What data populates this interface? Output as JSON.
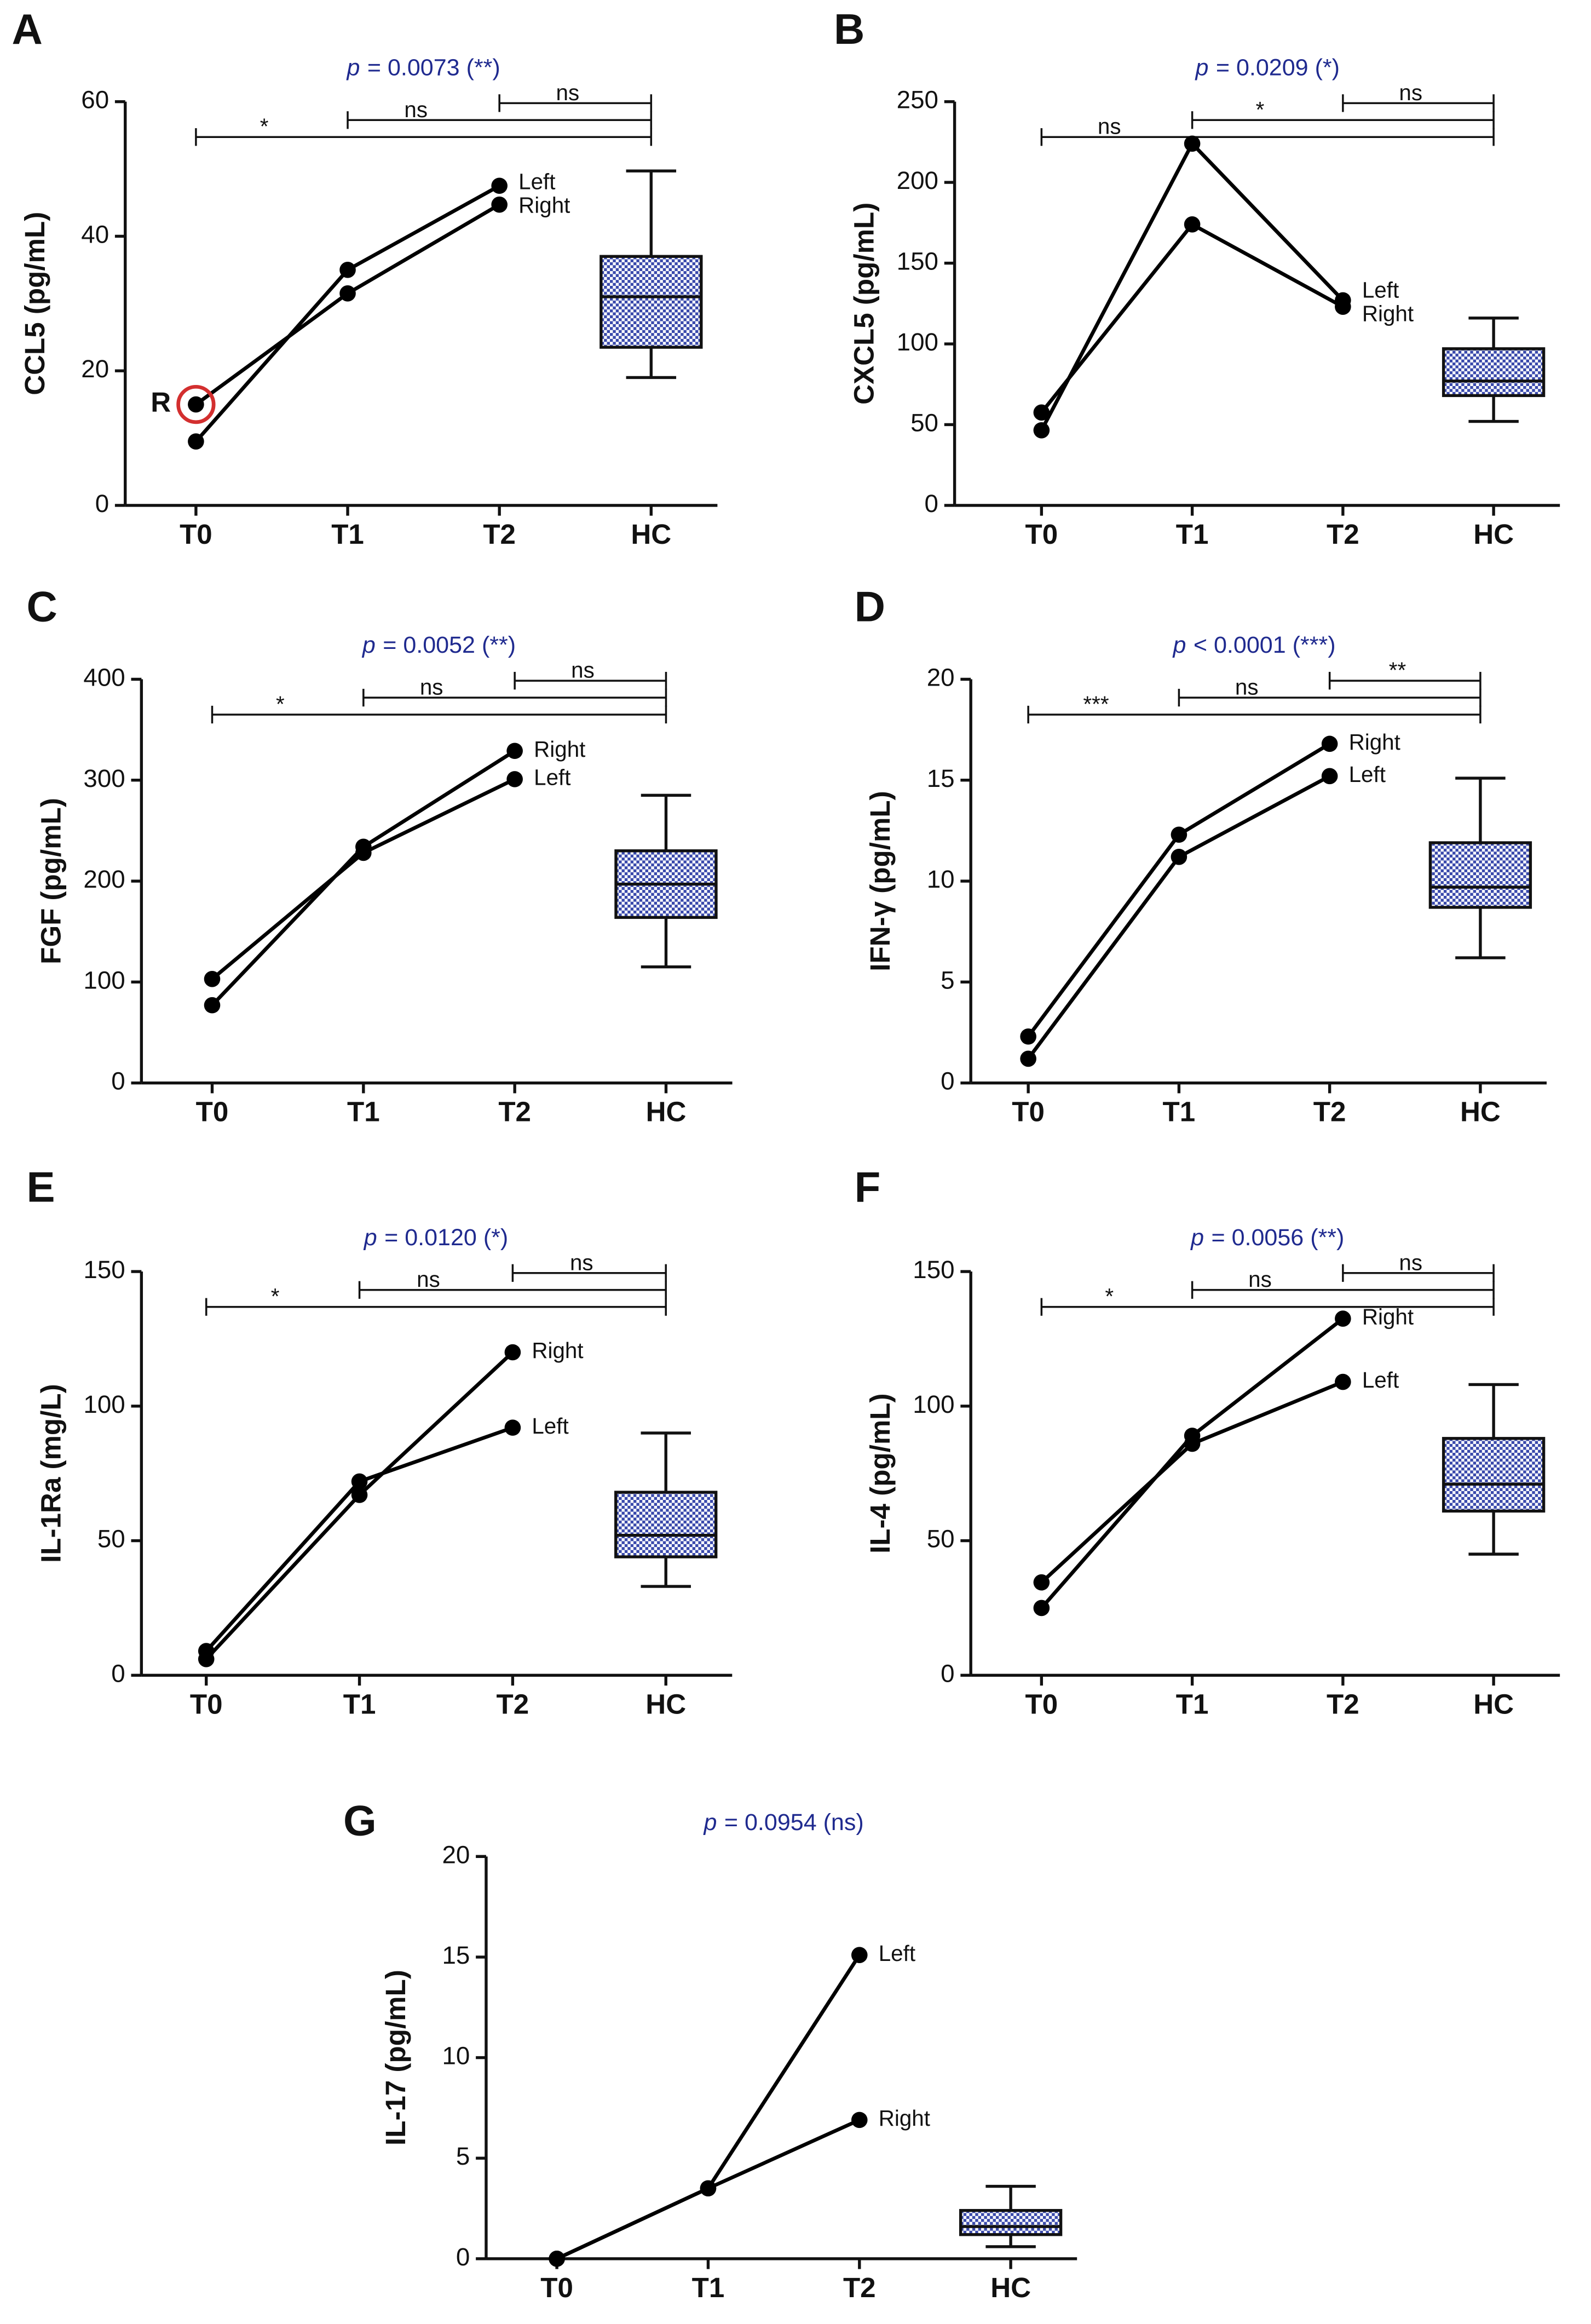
{
  "chart_data": [
    {
      "type": "line",
      "panel_label": "A",
      "p_letter": "p",
      "p_value": "= 0.0073 (**)",
      "ylabel": "CCL5 (pg/mL)",
      "categories": [
        "T0",
        "T1",
        "T2",
        "HC"
      ],
      "series": [
        {
          "name": "Left",
          "color": "#000000",
          "values": [
            9.5,
            35,
            47.5,
            null
          ]
        },
        {
          "name": "Right",
          "color": "#000000",
          "values": [
            15,
            31.5,
            44.7,
            null
          ]
        }
      ],
      "box": {
        "category": "HC",
        "whisker_low": 19,
        "q1": 23.5,
        "median": 31,
        "q3": 37,
        "whisker_high": 49.7,
        "color": "#3949ab"
      },
      "comparisons": [
        {
          "from": "T0",
          "to": "HC",
          "label": "*"
        },
        {
          "from": "T1",
          "to": "HC",
          "label": "ns"
        },
        {
          "from": "T2",
          "to": "HC",
          "label": "ns"
        }
      ],
      "annotation": {
        "text": "R",
        "category": "T0",
        "series": "Right",
        "color": "#d32f2f"
      },
      "ylim": [
        0,
        60
      ],
      "yticks": [
        0,
        20,
        40,
        60
      ]
    },
    {
      "type": "line",
      "panel_label": "B",
      "p_letter": "p",
      "p_value": "= 0.0209 (*)",
      "ylabel": "CXCL5 (pg/mL)",
      "categories": [
        "T0",
        "T1",
        "T2",
        "HC"
      ],
      "series": [
        {
          "name": "Left",
          "color": "#000000",
          "values": [
            46.5,
            224,
            127,
            null
          ]
        },
        {
          "name": "Right",
          "color": "#000000",
          "values": [
            57.5,
            174,
            123,
            null
          ]
        }
      ],
      "box": {
        "category": "HC",
        "whisker_low": 52,
        "q1": 68,
        "median": 77,
        "q3": 97,
        "whisker_high": 116,
        "color": "#3949ab"
      },
      "comparisons": [
        {
          "from": "T0",
          "to": "HC",
          "label": "ns"
        },
        {
          "from": "T1",
          "to": "HC",
          "label": "*"
        },
        {
          "from": "T2",
          "to": "HC",
          "label": "ns"
        }
      ],
      "ylim": [
        0,
        250
      ],
      "yticks": [
        0,
        50,
        100,
        150,
        200,
        250
      ]
    },
    {
      "type": "line",
      "panel_label": "C",
      "p_letter": "p",
      "p_value": "= 0.0052 (**)",
      "ylabel": "FGF (pg/mL)",
      "categories": [
        "T0",
        "T1",
        "T2",
        "HC"
      ],
      "series": [
        {
          "name": "Right",
          "color": "#000000",
          "values": [
            77,
            234,
            329,
            null
          ]
        },
        {
          "name": "Left",
          "color": "#000000",
          "values": [
            103,
            228,
            301,
            null
          ]
        }
      ],
      "box": {
        "category": "HC",
        "whisker_low": 115,
        "q1": 164,
        "median": 197,
        "q3": 230,
        "whisker_high": 285,
        "color": "#3949ab"
      },
      "comparisons": [
        {
          "from": "T0",
          "to": "HC",
          "label": "*"
        },
        {
          "from": "T1",
          "to": "HC",
          "label": "ns"
        },
        {
          "from": "T2",
          "to": "HC",
          "label": "ns"
        }
      ],
      "ylim": [
        0,
        400
      ],
      "yticks": [
        0,
        100,
        200,
        300,
        400
      ]
    },
    {
      "type": "line",
      "panel_label": "D",
      "p_letter": "p",
      "p_value": "< 0.0001 (***)",
      "ylabel": "IFN-γ (pg/mL)",
      "categories": [
        "T0",
        "T1",
        "T2",
        "HC"
      ],
      "series": [
        {
          "name": "Right",
          "color": "#000000",
          "values": [
            2.3,
            12.3,
            16.8,
            null
          ]
        },
        {
          "name": "Left",
          "color": "#000000",
          "values": [
            1.2,
            11.2,
            15.2,
            null
          ]
        }
      ],
      "box": {
        "category": "HC",
        "whisker_low": 6.2,
        "q1": 8.7,
        "median": 9.7,
        "q3": 11.9,
        "whisker_high": 15.1,
        "color": "#3949ab"
      },
      "comparisons": [
        {
          "from": "T0",
          "to": "HC",
          "label": "***"
        },
        {
          "from": "T1",
          "to": "HC",
          "label": "ns"
        },
        {
          "from": "T2",
          "to": "HC",
          "label": "**"
        }
      ],
      "ylim": [
        0,
        20
      ],
      "yticks": [
        0,
        5,
        10,
        15,
        20
      ]
    },
    {
      "type": "line",
      "panel_label": "E",
      "p_letter": "p",
      "p_value": "= 0.0120 (*)",
      "ylabel": "IL-1Ra (mg/L)",
      "categories": [
        "T0",
        "T1",
        "T2",
        "HC"
      ],
      "series": [
        {
          "name": "Right",
          "color": "#000000",
          "values": [
            6,
            67,
            120,
            null
          ]
        },
        {
          "name": "Left",
          "color": "#000000",
          "values": [
            9,
            72,
            92,
            null
          ]
        }
      ],
      "box": {
        "category": "HC",
        "whisker_low": 33,
        "q1": 44,
        "median": 52,
        "q3": 68,
        "whisker_high": 90,
        "color": "#3949ab"
      },
      "comparisons": [
        {
          "from": "T0",
          "to": "HC",
          "label": "*"
        },
        {
          "from": "T1",
          "to": "HC",
          "label": "ns"
        },
        {
          "from": "T2",
          "to": "HC",
          "label": "ns"
        }
      ],
      "ylim": [
        0,
        150
      ],
      "yticks": [
        0,
        50,
        100,
        150
      ]
    },
    {
      "type": "line",
      "panel_label": "F",
      "p_letter": "p",
      "p_value": "= 0.0056 (**)",
      "ylabel": "IL-4 (pg/mL)",
      "categories": [
        "T0",
        "T1",
        "T2",
        "HC"
      ],
      "series": [
        {
          "name": "Right",
          "color": "#000000",
          "values": [
            25,
            89,
            132.5,
            null
          ]
        },
        {
          "name": "Left",
          "color": "#000000",
          "values": [
            34.5,
            86,
            109,
            null
          ]
        }
      ],
      "box": {
        "category": "HC",
        "whisker_low": 45,
        "q1": 61,
        "median": 71,
        "q3": 88,
        "whisker_high": 108,
        "color": "#3949ab"
      },
      "comparisons": [
        {
          "from": "T0",
          "to": "HC",
          "label": "*"
        },
        {
          "from": "T1",
          "to": "HC",
          "label": "ns"
        },
        {
          "from": "T2",
          "to": "HC",
          "label": "ns"
        }
      ],
      "ylim": [
        0,
        150
      ],
      "yticks": [
        0,
        50,
        100,
        150
      ]
    },
    {
      "type": "line",
      "panel_label": "G",
      "p_letter": "p",
      "p_value": "= 0.0954 (ns)",
      "ylabel": "IL-17 (pg/mL)",
      "categories": [
        "T0",
        "T1",
        "T2",
        "HC"
      ],
      "series": [
        {
          "name": "Left",
          "color": "#000000",
          "values": [
            0,
            3.5,
            15.1,
            null
          ]
        },
        {
          "name": "Right",
          "color": "#000000",
          "values": [
            0,
            3.5,
            6.9,
            null
          ]
        }
      ],
      "box": {
        "category": "HC",
        "whisker_low": 0.6,
        "q1": 1.2,
        "median": 1.6,
        "q3": 2.4,
        "whisker_high": 3.6,
        "color": "#3949ab"
      },
      "comparisons": [],
      "ylim": [
        0,
        20
      ],
      "yticks": [
        0,
        5,
        10,
        15,
        20
      ]
    }
  ]
}
